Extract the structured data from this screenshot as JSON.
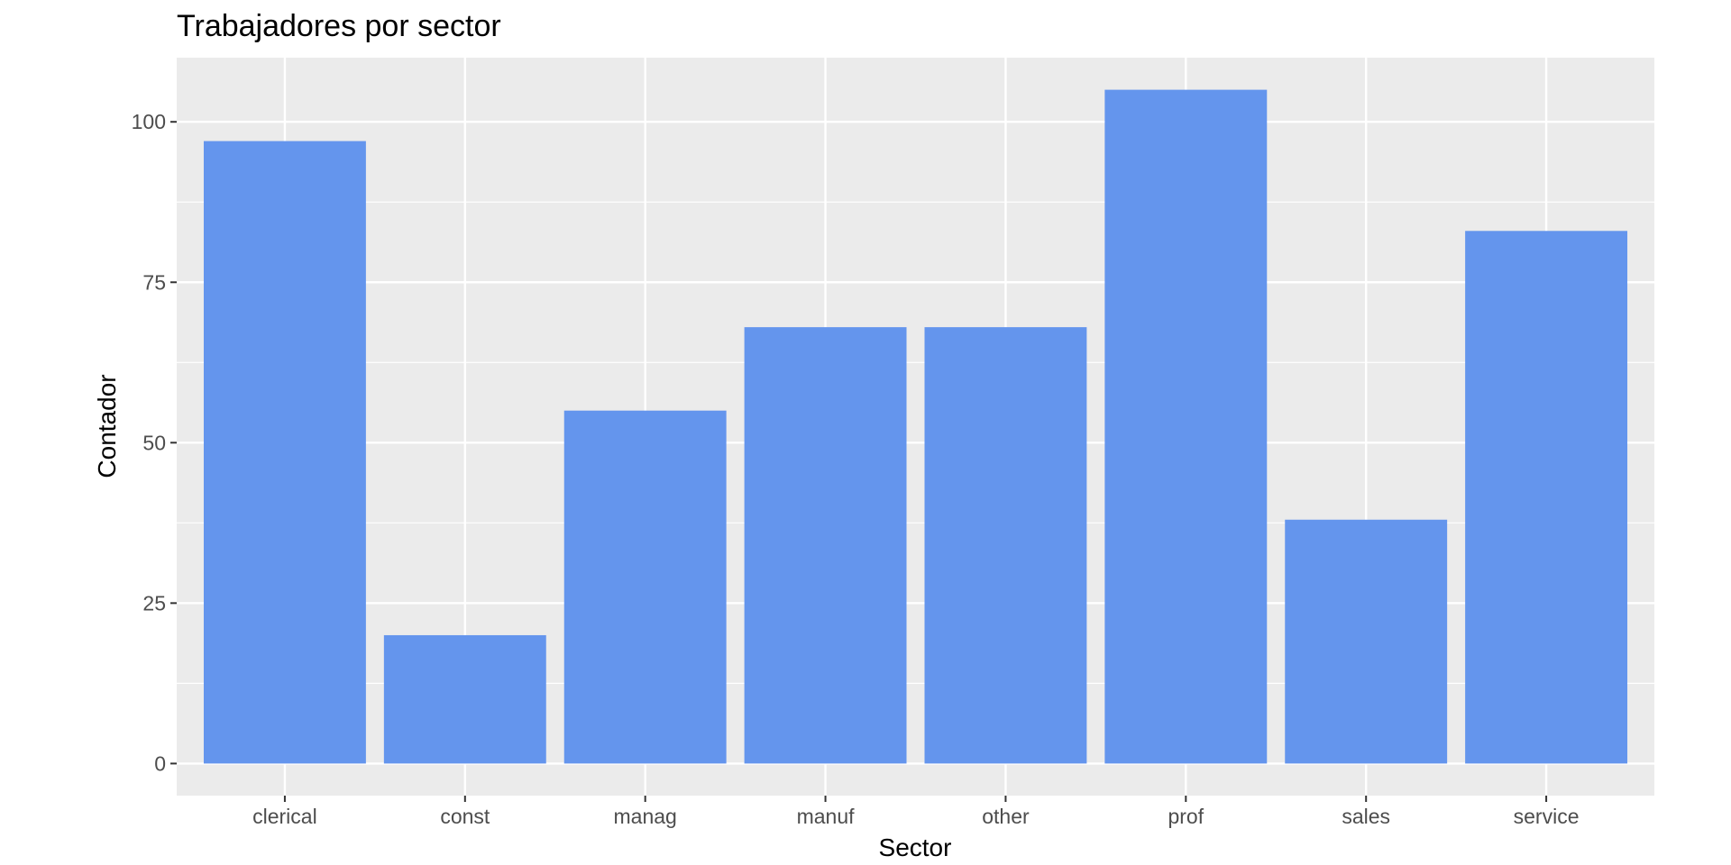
{
  "chart_data": {
    "type": "bar",
    "title": "Trabajadores por sector",
    "xlabel": "Sector",
    "ylabel": "Contador",
    "categories": [
      "clerical",
      "const",
      "manag",
      "manuf",
      "other",
      "prof",
      "sales",
      "service"
    ],
    "values": [
      97,
      20,
      55,
      68,
      68,
      105,
      38,
      83
    ],
    "ylim": [
      -5,
      110
    ],
    "yticks": [
      0,
      25,
      50,
      75,
      100
    ],
    "grid": true,
    "legend": "none"
  },
  "colors": {
    "bar": "#6495ED",
    "panel": "#EBEBEB",
    "grid": "#FFFFFF",
    "tick": "#333333"
  }
}
